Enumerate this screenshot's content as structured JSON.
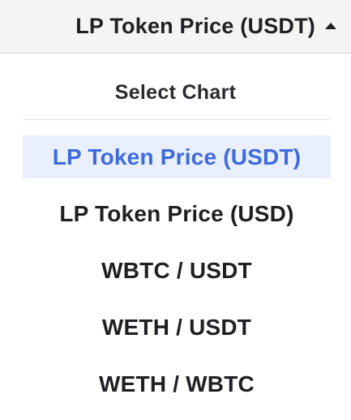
{
  "dropdown": {
    "selected_label": "LP Token Price (USDT)",
    "caret_icon": "caret-up-icon"
  },
  "menu": {
    "heading": "Select Chart",
    "items": [
      {
        "label": "LP Token Price (USDT)",
        "selected": true
      },
      {
        "label": "LP Token Price (USD)",
        "selected": false
      },
      {
        "label": "WBTC / USDT",
        "selected": false
      },
      {
        "label": "WETH / USDT",
        "selected": false
      },
      {
        "label": "WETH / WBTC",
        "selected": false
      }
    ]
  },
  "colors": {
    "selected_text": "#3f6be0",
    "selected_background": "#e9effb",
    "header_background": "#f4f4f5",
    "text": "#1f2024"
  }
}
